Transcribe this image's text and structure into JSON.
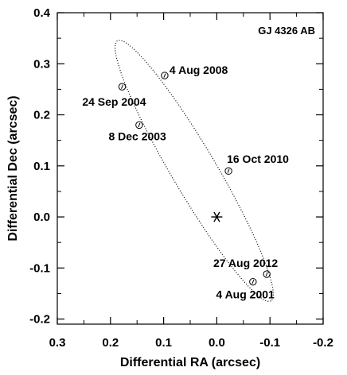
{
  "chart_data": {
    "type": "scatter",
    "title": "GJ 4326 AB",
    "xlabel": "Differential RA (arcsec)",
    "ylabel": "Differential Dec (arcsec)",
    "xlim": [
      0.3,
      -0.2
    ],
    "ylim": [
      -0.21,
      0.4
    ],
    "x_ticks": [
      0.3,
      0.2,
      0.1,
      0.0,
      -0.1,
      -0.2
    ],
    "x_tick_labels": [
      "0.3",
      "0.2",
      "0.1",
      "0.0",
      "-0.1",
      "-0.2"
    ],
    "y_ticks": [
      -0.2,
      -0.1,
      0.0,
      0.1,
      0.2,
      0.3,
      0.4
    ],
    "y_tick_labels": [
      "-0.2",
      "-0.1",
      "0.0",
      "0.1",
      "0.2",
      "0.3",
      "0.4"
    ],
    "primary": {
      "x": 0.0,
      "y": 0.0,
      "marker": "asterisk"
    },
    "points": [
      {
        "label": "4 Aug 2008",
        "x": 0.098,
        "y": 0.277
      },
      {
        "label": "24 Sep 2004",
        "x": 0.178,
        "y": 0.255
      },
      {
        "label": "8 Dec 2003",
        "x": 0.146,
        "y": 0.18
      },
      {
        "label": "16 Oct 2010",
        "x": -0.022,
        "y": 0.09
      },
      {
        "label": "27 Aug 2012",
        "x": -0.094,
        "y": -0.112
      },
      {
        "label": "4 Aug 2001",
        "x": -0.068,
        "y": -0.127
      }
    ],
    "orbit": "dotted ellipse",
    "grid": false,
    "legend": "none"
  }
}
